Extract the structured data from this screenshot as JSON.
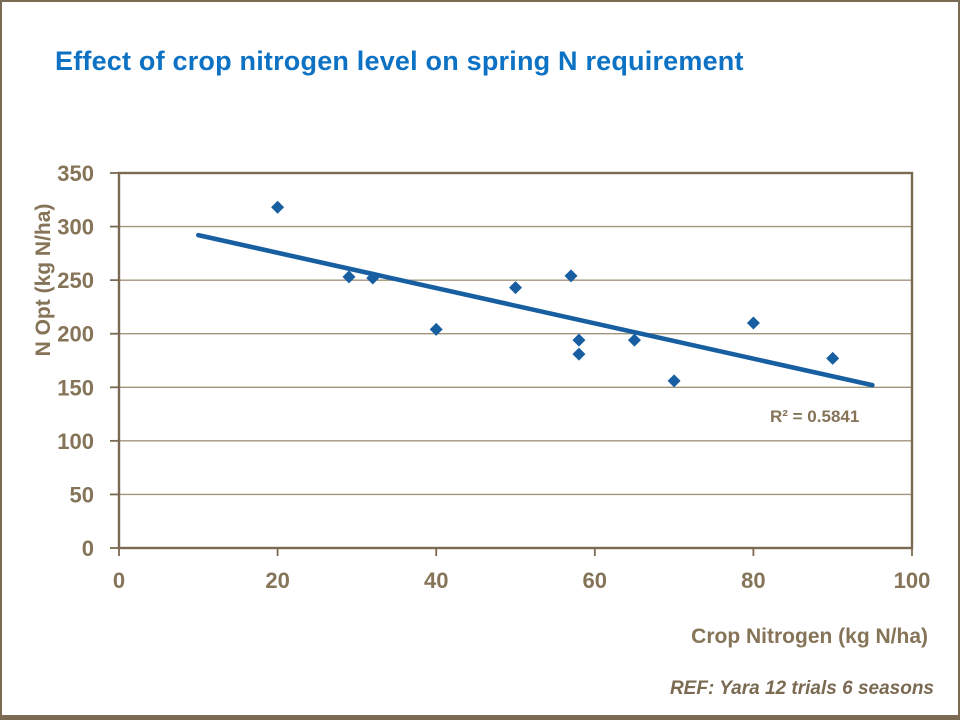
{
  "title": "Effect of crop nitrogen level on spring N requirement",
  "footer": {
    "ref": "REF: Yara 12 trials 6 seasons"
  },
  "colors": {
    "title_blue": "#0d72c4",
    "series_blue": "#185fa1",
    "axis_brown": "#7b6a52",
    "label_brown": "#857457",
    "gridline_brown": "#a2947c"
  },
  "chart_data": {
    "type": "scatter",
    "title": "Effect of crop nitrogen level on spring N requirement",
    "xlabel": "Crop Nitrogen (kg N/ha)",
    "ylabel": "N Opt (kg N/ha)",
    "xlim": [
      0,
      100
    ],
    "ylim": [
      0,
      350
    ],
    "xticks": [
      0,
      20,
      40,
      60,
      80,
      100
    ],
    "yticks": [
      0,
      50,
      100,
      150,
      200,
      250,
      300,
      350
    ],
    "grid": "horizontal gridlines at each 50, boxed plot area",
    "legend": "none",
    "points": [
      [
        20,
        318
      ],
      [
        29,
        253
      ],
      [
        32,
        252
      ],
      [
        40,
        204
      ],
      [
        50,
        243
      ],
      [
        57,
        254
      ],
      [
        58,
        194
      ],
      [
        58,
        181
      ],
      [
        65,
        194
      ],
      [
        70,
        156
      ],
      [
        80,
        210
      ],
      [
        90,
        177
      ]
    ],
    "trendline": {
      "type": "linear",
      "x_start": 10,
      "y_start": 292,
      "x_end": 95,
      "y_end": 152
    },
    "annotation": "R² = 0.5841",
    "r_squared": 0.5841
  }
}
